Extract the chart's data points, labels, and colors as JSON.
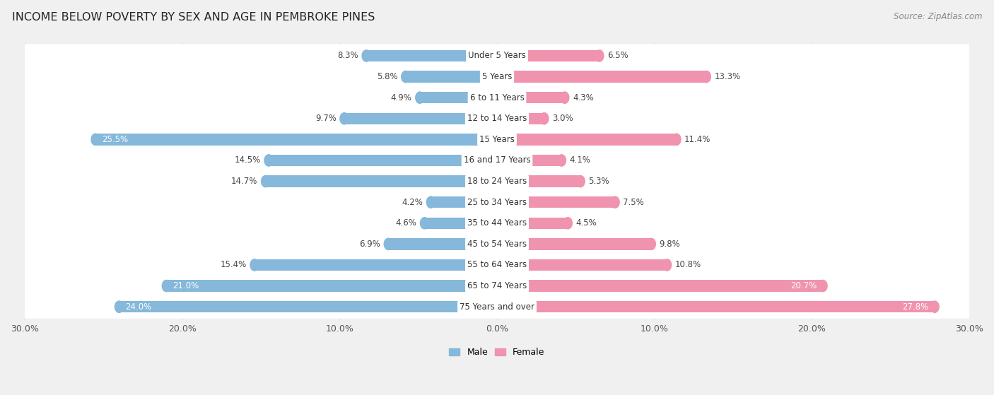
{
  "title": "INCOME BELOW POVERTY BY SEX AND AGE IN PEMBROKE PINES",
  "source": "Source: ZipAtlas.com",
  "categories": [
    "Under 5 Years",
    "5 Years",
    "6 to 11 Years",
    "12 to 14 Years",
    "15 Years",
    "16 and 17 Years",
    "18 to 24 Years",
    "25 to 34 Years",
    "35 to 44 Years",
    "45 to 54 Years",
    "55 to 64 Years",
    "65 to 74 Years",
    "75 Years and over"
  ],
  "male": [
    8.3,
    5.8,
    4.9,
    9.7,
    25.5,
    14.5,
    14.7,
    4.2,
    4.6,
    6.9,
    15.4,
    21.0,
    24.0
  ],
  "female": [
    6.5,
    13.3,
    4.3,
    3.0,
    11.4,
    4.1,
    5.3,
    7.5,
    4.5,
    9.8,
    10.8,
    20.7,
    27.8
  ],
  "male_color": "#85b8da",
  "female_color": "#f093ae",
  "male_label": "Male",
  "female_label": "Female",
  "xlim": 30.0,
  "background_color": "#f0f0f0",
  "row_color_light": "#f7f7f7",
  "row_color_dark": "#ebebeb",
  "title_fontsize": 11.5,
  "source_fontsize": 8.5,
  "label_fontsize": 8.5,
  "tick_fontsize": 9,
  "cat_fontsize": 8.5
}
